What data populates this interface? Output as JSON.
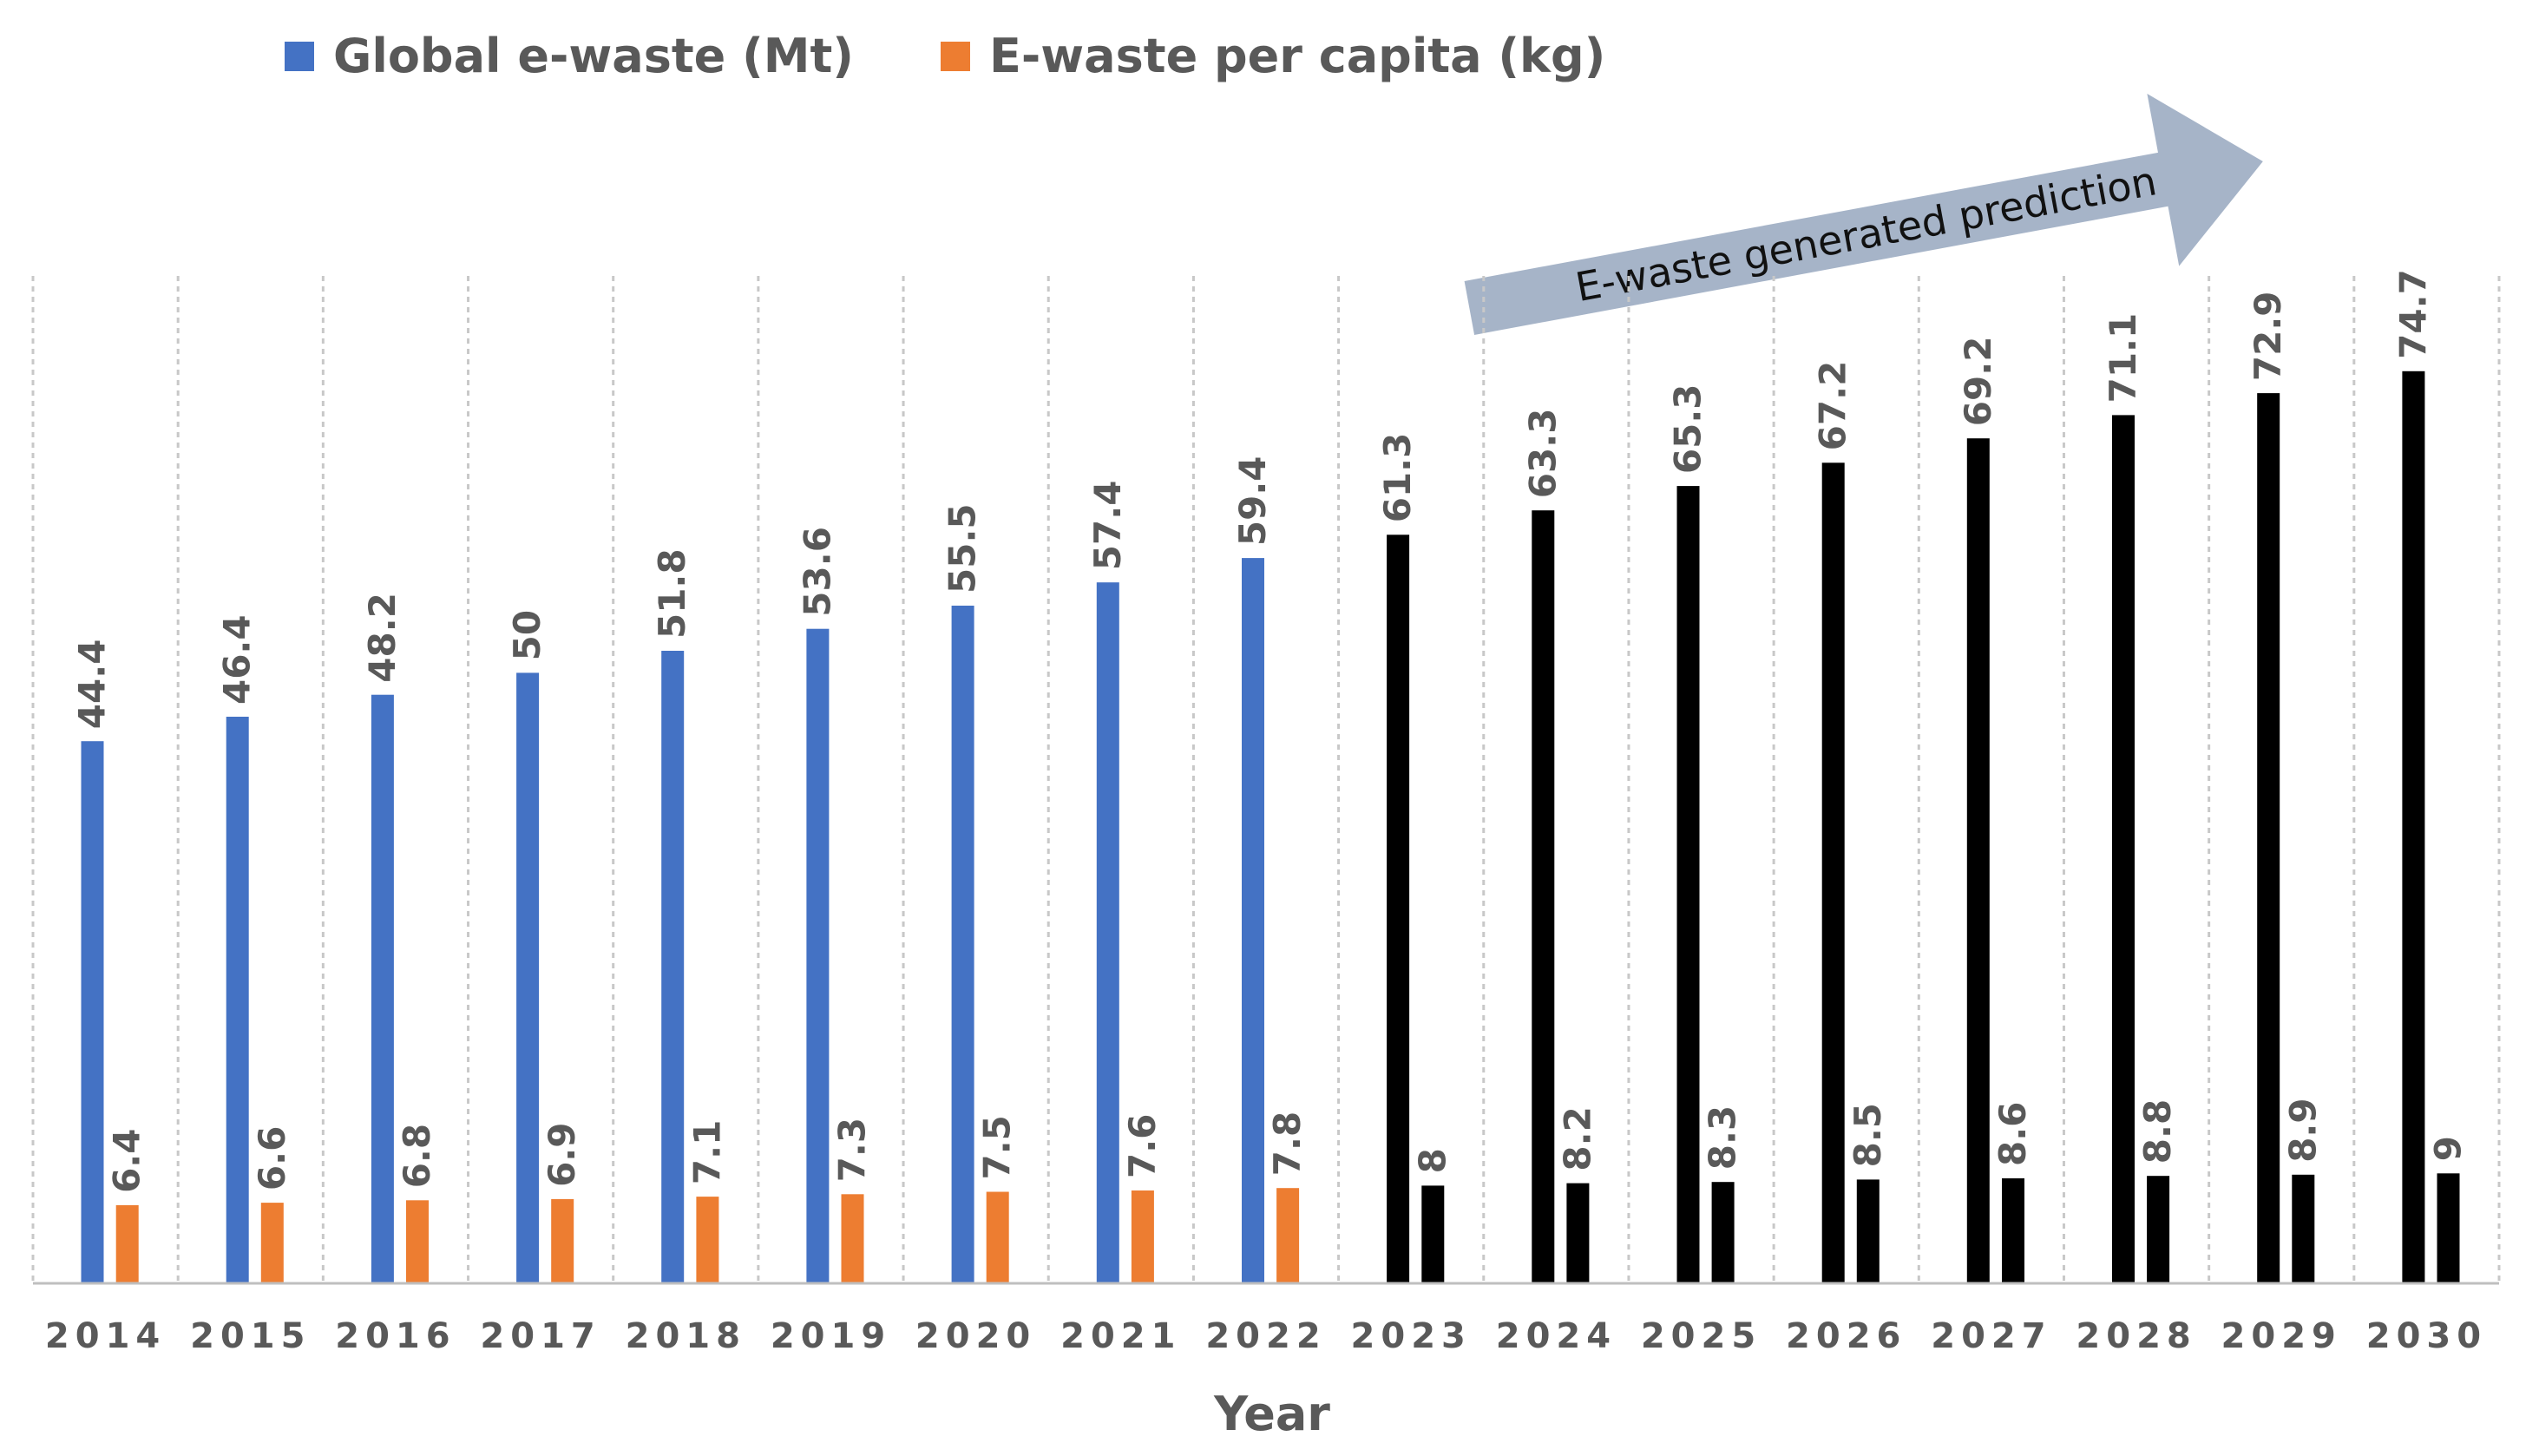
{
  "chart_data": {
    "type": "bar",
    "categories": [
      "2014",
      "2015",
      "2016",
      "2017",
      "2018",
      "2019",
      "2020",
      "2021",
      "2022",
      "2023",
      "2024",
      "2025",
      "2026",
      "2027",
      "2028",
      "2029",
      "2030"
    ],
    "series": [
      {
        "name": "Global e-waste (Mt)",
        "color": "#4472C4",
        "values": [
          44.4,
          46.4,
          48.2,
          50,
          51.8,
          53.6,
          55.5,
          57.4,
          59.4,
          61.3,
          63.3,
          65.3,
          67.2,
          69.2,
          71.1,
          72.9,
          74.7
        ]
      },
      {
        "name": "E-waste per capita (kg)",
        "color": "#ED7D31",
        "values": [
          6.4,
          6.6,
          6.8,
          6.9,
          7.1,
          7.3,
          7.5,
          7.6,
          7.8,
          8,
          8.2,
          8.3,
          8.5,
          8.6,
          8.8,
          8.9,
          9
        ]
      }
    ],
    "prediction_start_category": "2023",
    "prediction_color": "#000000",
    "xlabel": "Year",
    "ylabel": "",
    "ylim": [
      0,
      82.5
    ],
    "legend_position": "top-left",
    "grid": "vertical-dashed",
    "annotation": {
      "text": "E-waste generated prediction",
      "color": "#A6B4C8"
    }
  }
}
